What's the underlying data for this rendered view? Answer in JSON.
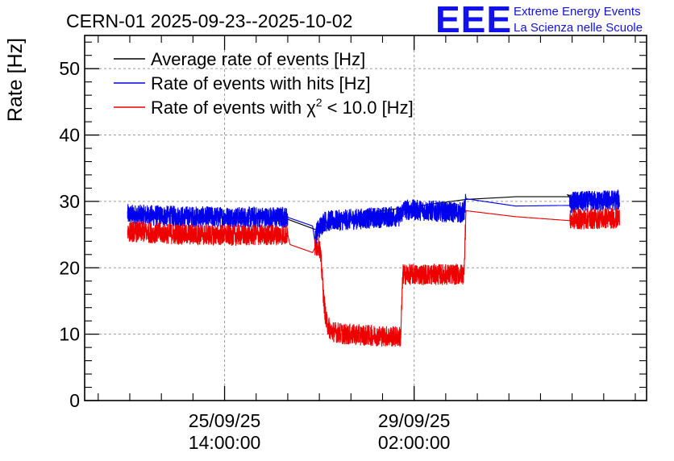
{
  "chart_data": {
    "type": "line",
    "title": "CERN-01 2025-09-23--2025-10-02",
    "ylabel": "Rate [Hz]",
    "xlabel": "",
    "ylim": [
      0,
      55
    ],
    "yticks": [
      0,
      10,
      20,
      30,
      40,
      50
    ],
    "yticks_minor": [
      2,
      4,
      6,
      8,
      12,
      14,
      16,
      18,
      22,
      24,
      26,
      28,
      32,
      34,
      36,
      38,
      42,
      44,
      46,
      48,
      52,
      54
    ],
    "xlim_hours": [
      0,
      249
    ],
    "x_ticks": [
      {
        "hours": 62,
        "date": "25/09/25",
        "time": "14:00:00"
      },
      {
        "hours": 146,
        "date": "29/09/25",
        "time": "02:00:00"
      }
    ],
    "x_ticks_minor_hours": [
      6,
      20,
      34,
      48,
      76,
      90,
      104,
      118,
      132,
      160,
      174,
      188,
      202,
      216,
      230,
      244
    ],
    "grid": true,
    "legend_position": "top-left",
    "logo": {
      "text": "EEE",
      "line1": "Extreme Energy Events",
      "line2": "La Scienza nelle Scuole"
    },
    "series": [
      {
        "name": "Average rate of events [Hz]",
        "color": "#000000",
        "points": [
          [
            19,
            28.0
          ],
          [
            90,
            27.3
          ],
          [
            102,
            25.8
          ],
          [
            132,
            28.6
          ],
          [
            169,
            30.3
          ],
          [
            191,
            30.7
          ],
          [
            215,
            30.7
          ],
          [
            215,
            29.4
          ],
          [
            216,
            30.0
          ],
          [
            214,
            31.0
          ],
          [
            229,
            29.6
          ],
          [
            237,
            30.0
          ]
        ]
      },
      {
        "name": "Rate of events with hits [Hz]",
        "color": "#0000ee",
        "noise": 1.6,
        "points": [
          [
            19,
            28.0
          ],
          [
            45,
            27.7
          ],
          [
            70,
            27.6
          ],
          [
            90,
            27.6
          ],
          [
            101,
            26.3
          ],
          [
            102,
            24.0
          ],
          [
            103,
            25.5
          ],
          [
            106,
            27.0
          ],
          [
            140,
            27.8
          ],
          [
            141,
            28.8
          ],
          [
            168,
            28.3
          ],
          [
            169,
            30.4
          ],
          [
            191,
            29.3
          ],
          [
            215,
            29.4
          ],
          [
            216,
            29.9
          ],
          [
            237,
            30.2
          ]
        ]
      },
      {
        "name": "Rate of events with χ² < 10.0 [Hz]",
        "legend_prefix": "Rate of events with χ",
        "legend_sup": "2",
        "legend_suffix": " < 10.0 [Hz]",
        "color": "#ee0000",
        "noise": 1.6,
        "points": [
          [
            19,
            25.5
          ],
          [
            45,
            25.0
          ],
          [
            70,
            24.9
          ],
          [
            90,
            25.0
          ],
          [
            91,
            23.5
          ],
          [
            101,
            22.3
          ],
          [
            102,
            23.0
          ],
          [
            104,
            23.5
          ],
          [
            105,
            20.0
          ],
          [
            106,
            15.0
          ],
          [
            107,
            12.0
          ],
          [
            109,
            10.5
          ],
          [
            115,
            10.0
          ],
          [
            140,
            9.6
          ],
          [
            141,
            19.0
          ],
          [
            168,
            19.0
          ],
          [
            169,
            28.6
          ],
          [
            191,
            27.7
          ],
          [
            215,
            27.1
          ],
          [
            216,
            27.3
          ],
          [
            237,
            27.5
          ]
        ]
      }
    ]
  }
}
